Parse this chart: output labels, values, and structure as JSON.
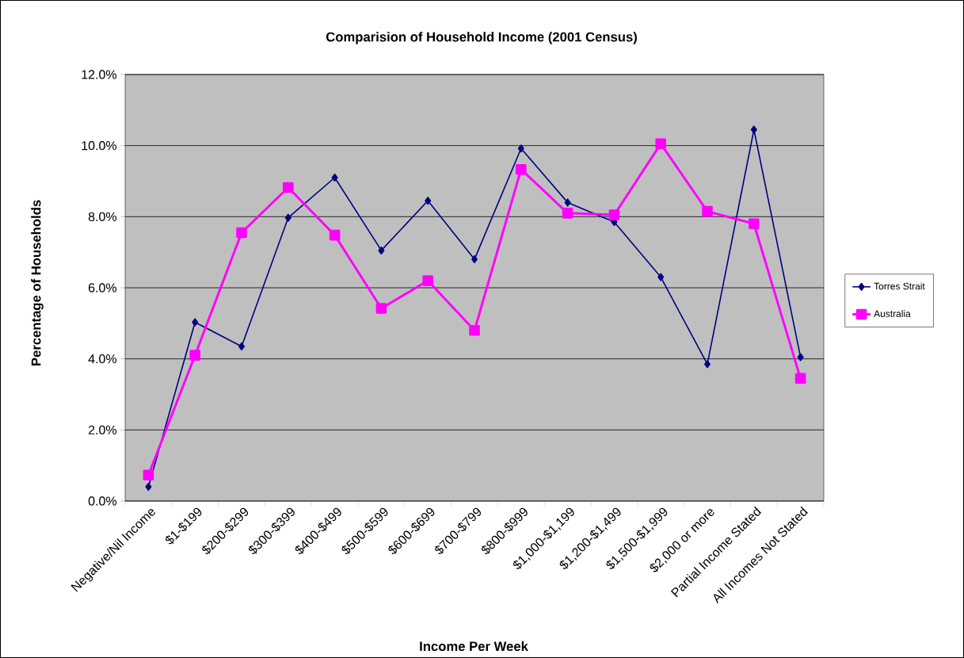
{
  "chart_data": {
    "type": "line",
    "title": "Comparision of Household Income (2001 Census)",
    "xlabel": "Income Per Week",
    "ylabel": "Percentage of Households",
    "categories": [
      "Negative/Nil Income",
      "$1-$199",
      "$200-$299",
      "$300-$399",
      "$400-$499",
      "$500-$599",
      "$600-$699",
      "$700-$799",
      "$800-$999",
      "$1,000-$1,199",
      "$1,200-$1,499",
      "$1,500-$1,999",
      "$2,000 or more",
      "Partial Income Stated",
      "All Incomes Not Stated"
    ],
    "series": [
      {
        "name": "Torres Strait",
        "color": "#000080",
        "marker": "diamond",
        "values": [
          0.4,
          5.03,
          4.35,
          7.97,
          9.1,
          7.05,
          8.45,
          6.8,
          9.92,
          8.4,
          7.85,
          6.3,
          3.85,
          10.45,
          4.05
        ]
      },
      {
        "name": "Australia",
        "color": "#ff00ff",
        "marker": "square",
        "values": [
          0.73,
          4.1,
          7.55,
          8.82,
          7.48,
          5.42,
          6.2,
          4.8,
          9.33,
          8.1,
          8.05,
          10.05,
          8.15,
          7.8,
          3.45
        ]
      }
    ],
    "ylim": [
      0,
      12
    ],
    "yticks": [
      {
        "value": 0,
        "label": "0.0%"
      },
      {
        "value": 2,
        "label": "2.0%"
      },
      {
        "value": 4,
        "label": "4.0%"
      },
      {
        "value": 6,
        "label": "6.0%"
      },
      {
        "value": 8,
        "label": "8.0%"
      },
      {
        "value": 10,
        "label": "10.0%"
      },
      {
        "value": 12,
        "label": "12.0%"
      }
    ],
    "grid": "y",
    "legend": "right",
    "line_style": "solid"
  }
}
